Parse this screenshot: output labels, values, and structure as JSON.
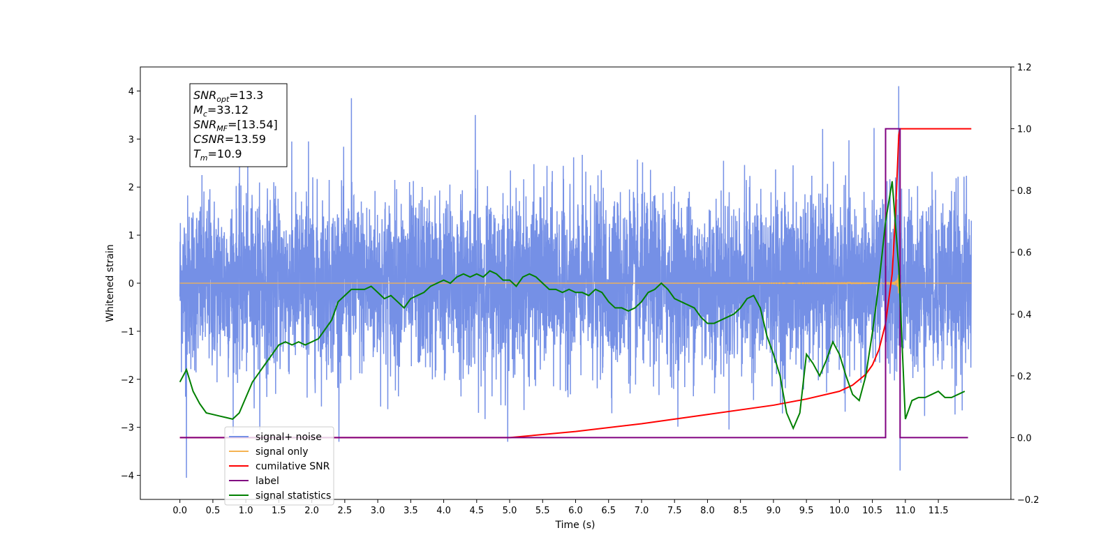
{
  "chart_data": {
    "type": "line",
    "xlabel": "Time (s)",
    "ylabel": "Whitened strain",
    "xlim": [
      -0.6,
      12.6
    ],
    "ylim": [
      -4.5,
      4.5
    ],
    "y2lim": [
      -0.2,
      1.2
    ],
    "grid": false,
    "legend_position": "lower-left",
    "x_ticks": [
      "0.0",
      "0.5",
      "1.0",
      "1.5",
      "2.0",
      "2.5",
      "3.0",
      "3.5",
      "4.0",
      "4.5",
      "5.0",
      "5.5",
      "6.0",
      "6.5",
      "7.0",
      "7.5",
      "8.0",
      "8.5",
      "9.0",
      "9.5",
      "10.0",
      "10.5",
      "11.0",
      "11.5"
    ],
    "y_ticks": [
      "4",
      "3",
      "2",
      "1",
      "0",
      "−1",
      "−2",
      "−3",
      "−4"
    ],
    "y2_ticks": [
      "1.2",
      "1.0",
      "0.8",
      "0.6",
      "0.4",
      "0.2",
      "0.0",
      "−0.2"
    ],
    "annotation": {
      "lines": [
        {
          "sym": "SNR",
          "sub": "opt",
          "value": "=13.3"
        },
        {
          "sym": "M",
          "sub": "c",
          "value": "=33.12"
        },
        {
          "sym": "SNR",
          "sub": "MF",
          "value": "=[13.54]"
        },
        {
          "sym": "CSNR",
          "sub": "",
          "value": "=13.59"
        },
        {
          "sym": "T",
          "sub": "m",
          "value": "=10.9"
        }
      ]
    },
    "series": [
      {
        "name": "signal+ noise",
        "color": "#7590e6",
        "axis": "left",
        "description_values": {
          "x_range": [
            0.0,
            12.0
          ],
          "noise_std": 0.9,
          "sample_peaks": [
            [
              1.95,
              2.95
            ],
            [
              2.6,
              3.85
            ],
            [
              4.48,
              3.5
            ],
            [
              10.9,
              4.1
            ],
            [
              10.92,
              -3.9
            ],
            [
              0.1,
              -4.05
            ]
          ]
        }
      },
      {
        "name": "signal only",
        "color": "#f5b351",
        "axis": "left",
        "description_values": {
          "x_range": [
            0.0,
            12.0
          ],
          "merger_time": 10.9,
          "peak_amplitude": 0.75
        }
      },
      {
        "name": "cumilative SNR",
        "color": "#ff0000",
        "axis": "right",
        "x": [
          0.0,
          5.0,
          6.0,
          7.0,
          8.0,
          9.0,
          9.5,
          10.0,
          10.2,
          10.4,
          10.5,
          10.6,
          10.7,
          10.8,
          10.85,
          10.9,
          10.92,
          12.0
        ],
        "y": [
          0.0,
          0.0,
          0.02,
          0.045,
          0.075,
          0.105,
          0.125,
          0.15,
          0.17,
          0.205,
          0.235,
          0.285,
          0.37,
          0.53,
          0.72,
          0.98,
          1.0,
          1.0
        ]
      },
      {
        "name": "label",
        "color": "#800080",
        "axis": "right",
        "x": [
          0.0,
          10.7,
          10.7,
          10.92,
          10.92,
          11.95
        ],
        "y": [
          0.0,
          0.0,
          1.0,
          1.0,
          0.0,
          0.0
        ]
      },
      {
        "name": "signal statistics",
        "color": "#008000",
        "axis": "right",
        "x": [
          0.0,
          0.1,
          0.2,
          0.3,
          0.4,
          0.5,
          0.6,
          0.7,
          0.8,
          0.9,
          1.0,
          1.1,
          1.2,
          1.3,
          1.4,
          1.5,
          1.6,
          1.7,
          1.8,
          1.9,
          2.0,
          2.1,
          2.2,
          2.3,
          2.4,
          2.5,
          2.6,
          2.7,
          2.8,
          2.9,
          3.0,
          3.1,
          3.2,
          3.3,
          3.4,
          3.5,
          3.6,
          3.7,
          3.8,
          3.9,
          4.0,
          4.1,
          4.2,
          4.3,
          4.4,
          4.5,
          4.6,
          4.7,
          4.8,
          4.9,
          5.0,
          5.1,
          5.2,
          5.3,
          5.4,
          5.5,
          5.6,
          5.7,
          5.8,
          5.9,
          6.0,
          6.1,
          6.2,
          6.3,
          6.4,
          6.5,
          6.6,
          6.7,
          6.8,
          6.9,
          7.0,
          7.1,
          7.2,
          7.3,
          7.4,
          7.5,
          7.6,
          7.7,
          7.8,
          7.9,
          8.0,
          8.1,
          8.2,
          8.3,
          8.4,
          8.5,
          8.6,
          8.7,
          8.8,
          8.9,
          9.0,
          9.1,
          9.2,
          9.3,
          9.4,
          9.5,
          9.6,
          9.7,
          9.8,
          9.9,
          10.0,
          10.1,
          10.2,
          10.3,
          10.4,
          10.5,
          10.6,
          10.7,
          10.8,
          10.9,
          11.0,
          11.1,
          11.2,
          11.3,
          11.4,
          11.5,
          11.6,
          11.7,
          11.8,
          11.9
        ],
        "y": [
          0.18,
          0.22,
          0.15,
          0.11,
          0.08,
          0.075,
          0.07,
          0.065,
          0.06,
          0.08,
          0.13,
          0.18,
          0.21,
          0.24,
          0.27,
          0.3,
          0.31,
          0.3,
          0.31,
          0.3,
          0.31,
          0.32,
          0.35,
          0.38,
          0.44,
          0.46,
          0.48,
          0.48,
          0.48,
          0.49,
          0.47,
          0.45,
          0.46,
          0.44,
          0.42,
          0.45,
          0.46,
          0.47,
          0.49,
          0.5,
          0.51,
          0.5,
          0.52,
          0.53,
          0.52,
          0.53,
          0.52,
          0.54,
          0.53,
          0.51,
          0.51,
          0.49,
          0.52,
          0.53,
          0.52,
          0.5,
          0.48,
          0.48,
          0.47,
          0.48,
          0.47,
          0.47,
          0.46,
          0.48,
          0.47,
          0.44,
          0.42,
          0.42,
          0.41,
          0.42,
          0.44,
          0.47,
          0.48,
          0.5,
          0.48,
          0.45,
          0.44,
          0.43,
          0.42,
          0.39,
          0.37,
          0.37,
          0.38,
          0.39,
          0.4,
          0.42,
          0.45,
          0.46,
          0.42,
          0.33,
          0.27,
          0.2,
          0.08,
          0.03,
          0.08,
          0.27,
          0.24,
          0.2,
          0.25,
          0.31,
          0.27,
          0.2,
          0.14,
          0.12,
          0.2,
          0.34,
          0.5,
          0.7,
          0.83,
          0.55,
          0.06,
          0.12,
          0.13,
          0.13,
          0.14,
          0.15,
          0.13,
          0.13,
          0.14,
          0.15
        ]
      }
    ]
  }
}
